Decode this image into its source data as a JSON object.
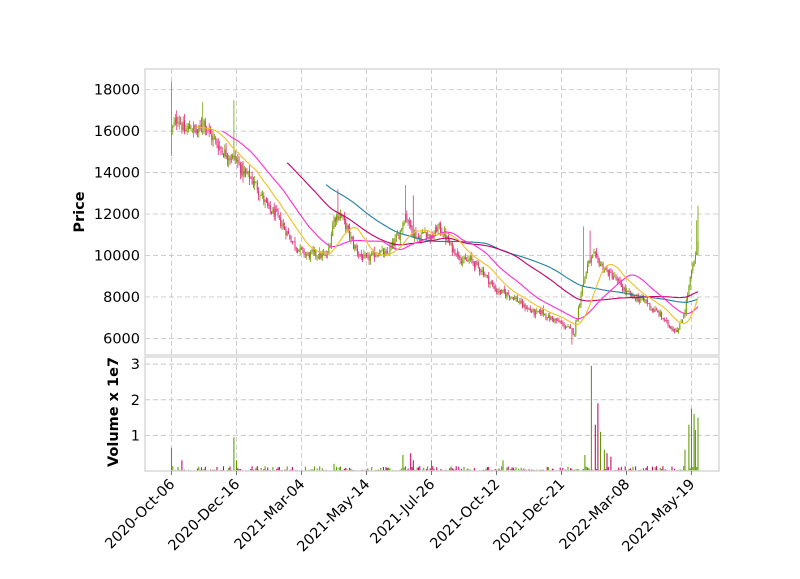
{
  "chart_data": {
    "type": "candlestick",
    "colors": {
      "up": "#73a000",
      "down": "#e0307a",
      "ma_short": "#f0c020",
      "ma_mid": "#ff2bd6",
      "ma_long": "#c0006a",
      "ma_longest": "#1f7fa0",
      "volume_up": "#5a9a00",
      "volume_down": "#c0006a"
    },
    "price_panel": {
      "ylabel": "Price",
      "ylim": [
        5200,
        19000
      ],
      "yticks": [
        6000,
        8000,
        10000,
        12000,
        14000,
        16000,
        18000
      ],
      "grid": true
    },
    "volume_panel": {
      "ylabel": "Volume x 1e7",
      "ylim": [
        0,
        3.2
      ],
      "yticks": [
        1,
        2,
        3
      ],
      "grid": true
    },
    "x_axis": {
      "tick_labels": [
        "2020-Oct-06",
        "2020-Dec-16",
        "2021-Mar-04",
        "2021-May-14",
        "2021-Jul-26",
        "2021-Oct-12",
        "2021-Dec-21",
        "2022-Mar-08",
        "2022-May-19"
      ],
      "tick_index": [
        0,
        50,
        100,
        150,
        200,
        250,
        300,
        350,
        400
      ]
    },
    "close_anchors": [
      [
        0,
        16000
      ],
      [
        5,
        16700
      ],
      [
        10,
        16000
      ],
      [
        15,
        16200
      ],
      [
        20,
        15900
      ],
      [
        25,
        16500
      ],
      [
        30,
        15800
      ],
      [
        35,
        15400
      ],
      [
        40,
        15000
      ],
      [
        45,
        14800
      ],
      [
        50,
        14600
      ],
      [
        55,
        14000
      ],
      [
        60,
        13800
      ],
      [
        65,
        13400
      ],
      [
        70,
        12800
      ],
      [
        75,
        12200
      ],
      [
        80,
        12000
      ],
      [
        85,
        11500
      ],
      [
        90,
        11000
      ],
      [
        95,
        10500
      ],
      [
        100,
        10200
      ],
      [
        105,
        10000
      ],
      [
        110,
        10100
      ],
      [
        115,
        10000
      ],
      [
        120,
        10000
      ],
      [
        125,
        11800
      ],
      [
        130,
        12000
      ],
      [
        135,
        11300
      ],
      [
        140,
        10500
      ],
      [
        145,
        10000
      ],
      [
        150,
        9800
      ],
      [
        155,
        10000
      ],
      [
        160,
        10200
      ],
      [
        165,
        10000
      ],
      [
        170,
        10500
      ],
      [
        175,
        11000
      ],
      [
        180,
        12000
      ],
      [
        185,
        11200
      ],
      [
        190,
        10800
      ],
      [
        195,
        11200
      ],
      [
        200,
        10800
      ],
      [
        205,
        11400
      ],
      [
        210,
        11000
      ],
      [
        215,
        10400
      ],
      [
        220,
        10100
      ],
      [
        225,
        9700
      ],
      [
        230,
        9800
      ],
      [
        235,
        9500
      ],
      [
        240,
        9200
      ],
      [
        245,
        8700
      ],
      [
        250,
        8300
      ],
      [
        255,
        8200
      ],
      [
        260,
        8100
      ],
      [
        265,
        7900
      ],
      [
        270,
        7600
      ],
      [
        275,
        7400
      ],
      [
        280,
        7200
      ],
      [
        285,
        7300
      ],
      [
        290,
        7000
      ],
      [
        295,
        6900
      ],
      [
        300,
        6700
      ],
      [
        305,
        6500
      ],
      [
        310,
        6300
      ],
      [
        315,
        8200
      ],
      [
        320,
        9500
      ],
      [
        325,
        10000
      ],
      [
        330,
        9600
      ],
      [
        335,
        9200
      ],
      [
        340,
        9000
      ],
      [
        345,
        8600
      ],
      [
        350,
        8200
      ],
      [
        355,
        8000
      ],
      [
        360,
        7900
      ],
      [
        365,
        7800
      ],
      [
        370,
        7400
      ],
      [
        375,
        7200
      ],
      [
        380,
        6800
      ],
      [
        385,
        6500
      ],
      [
        390,
        6400
      ],
      [
        395,
        7400
      ],
      [
        400,
        9200
      ],
      [
        403,
        9900
      ],
      [
        405,
        10500
      ]
    ],
    "candles": [],
    "ma_short": [],
    "ma_mid": [],
    "ma_long": [],
    "ma_longest": [],
    "volume": []
  }
}
